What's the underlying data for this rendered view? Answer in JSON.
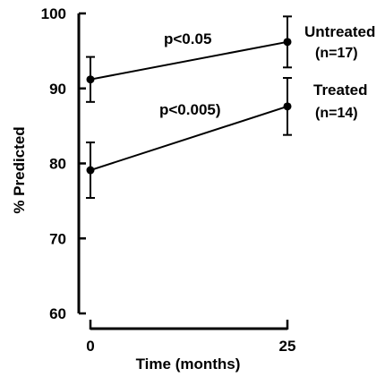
{
  "chart_data": {
    "type": "line",
    "ylabel": "% Predicted",
    "xlabel": "Time (months)",
    "x": [
      0,
      25
    ],
    "xticks": [
      "0",
      "25"
    ],
    "yticks": [
      "60",
      "70",
      "80",
      "90",
      "100"
    ],
    "ylim": [
      60,
      100
    ],
    "grid": false,
    "series": [
      {
        "name": "Untreated",
        "n_label": "(n=17)",
        "values": [
          91.2,
          96.2
        ],
        "error": [
          3.0,
          3.4
        ],
        "annotation": "p<0.05"
      },
      {
        "name": "Treated",
        "n_label": "(n=14)",
        "values": [
          79.1,
          87.6
        ],
        "error": [
          3.7,
          3.8
        ],
        "annotation": "p<0.005)"
      }
    ]
  }
}
